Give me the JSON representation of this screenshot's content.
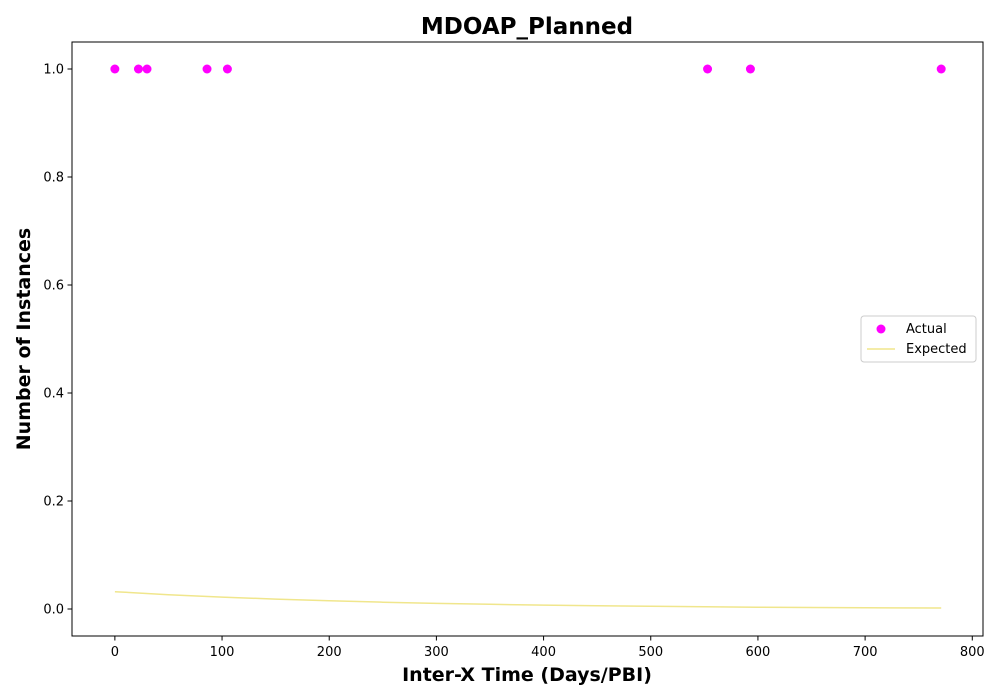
{
  "chart_data": {
    "type": "scatter",
    "title": "MDOAP_Planned",
    "xlabel": "Inter-X Time (Days/PBI)",
    "ylabel": "Number of Instances",
    "xlim": [
      -40,
      810
    ],
    "ylim": [
      -0.05,
      1.05
    ],
    "xticks": [
      0,
      100,
      200,
      300,
      400,
      500,
      600,
      700,
      800
    ],
    "yticks": [
      0.0,
      0.2,
      0.4,
      0.6,
      0.8,
      1.0
    ],
    "grid": false,
    "legend_position": "center-right",
    "series": [
      {
        "name": "Actual",
        "kind": "scatter",
        "color": "#ff00ff",
        "x": [
          0,
          22,
          30,
          86,
          105,
          553,
          593,
          771
        ],
        "y": [
          1,
          1,
          1,
          1,
          1,
          1,
          1,
          1
        ]
      },
      {
        "name": "Expected",
        "kind": "line",
        "color": "#f0e68c",
        "x": [
          0,
          50,
          100,
          150,
          200,
          250,
          300,
          350,
          400,
          450,
          500,
          550,
          600,
          650,
          700,
          771
        ],
        "y": [
          0.032,
          0.0265,
          0.022,
          0.0183,
          0.0152,
          0.0126,
          0.0104,
          0.0087,
          0.0072,
          0.006,
          0.005,
          0.0041,
          0.0034,
          0.0028,
          0.0023,
          0.0019
        ]
      }
    ]
  }
}
